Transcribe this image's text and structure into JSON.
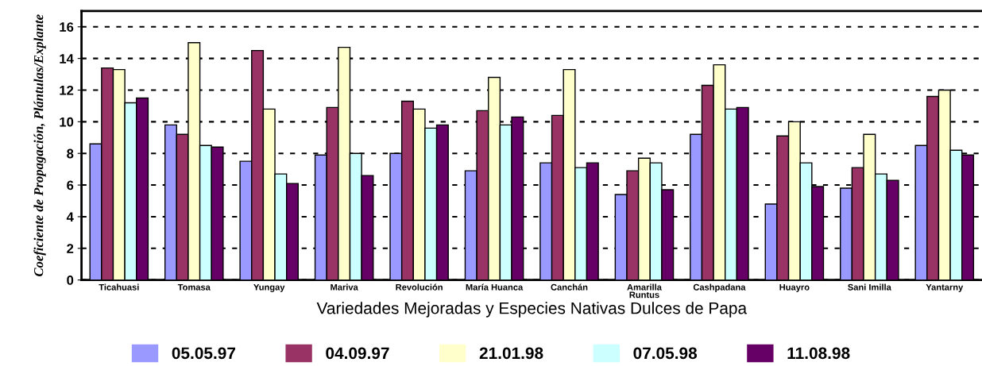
{
  "chart_data": {
    "type": "bar",
    "xlabel": "Variedades Mejoradas y Especies Nativas Dulces de Papa",
    "ylabel": "Coeficiente de Propagación, Plántulas/Explante",
    "categories": [
      "Ticahuasi",
      "Tomasa",
      "Yungay",
      "Mariva",
      "Revolución",
      "María Huanca",
      "Canchán",
      "Amarilla\nRuntus",
      "Cashpadana",
      "Huayro",
      "Sani Imilla",
      "Yantarny"
    ],
    "series": [
      {
        "name": "05.05.97",
        "color": "#9999ff",
        "values": [
          8.6,
          9.8,
          7.5,
          7.9,
          8.0,
          6.9,
          7.4,
          5.4,
          9.2,
          4.8,
          5.8,
          8.5
        ]
      },
      {
        "name": "04.09.97",
        "color": "#993366",
        "values": [
          13.4,
          9.2,
          14.5,
          10.9,
          11.3,
          10.7,
          10.4,
          6.9,
          12.3,
          9.1,
          7.1,
          11.6
        ]
      },
      {
        "name": "21.01.98",
        "color": "#ffffcc",
        "values": [
          13.3,
          15.0,
          10.8,
          14.7,
          10.8,
          12.8,
          13.3,
          7.7,
          13.6,
          10.0,
          9.2,
          12.0
        ]
      },
      {
        "name": "07.05.98",
        "color": "#ccffff",
        "values": [
          11.2,
          8.5,
          6.7,
          8.0,
          9.6,
          9.8,
          7.1,
          7.4,
          10.8,
          7.4,
          6.7,
          8.2
        ]
      },
      {
        "name": "11.08.98",
        "color": "#660066",
        "values": [
          11.5,
          8.4,
          6.1,
          6.6,
          9.8,
          10.3,
          7.4,
          5.7,
          10.9,
          5.9,
          6.3,
          7.9
        ]
      }
    ],
    "ylim": [
      0,
      17
    ],
    "yticks": [
      0,
      2,
      4,
      6,
      8,
      10,
      12,
      14,
      16
    ],
    "grid": "y",
    "legend": "bottom"
  }
}
